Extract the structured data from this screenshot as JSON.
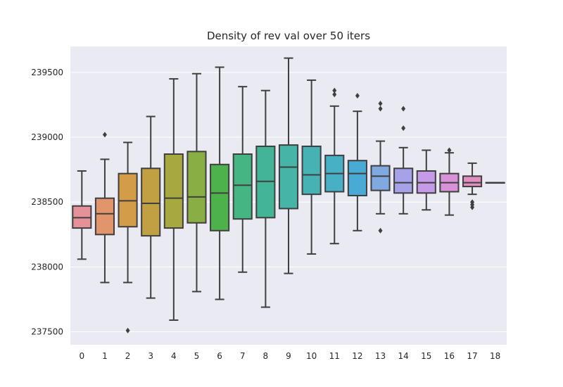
{
  "chart_data": {
    "type": "box",
    "title": "Density of rev val over 50 iters",
    "xlabel": "",
    "ylabel": "",
    "ylim": [
      237400,
      239700
    ],
    "yticks": [
      237500,
      238000,
      238500,
      239000,
      239500
    ],
    "grid": true,
    "categories": [
      "0",
      "1",
      "2",
      "3",
      "4",
      "5",
      "6",
      "7",
      "8",
      "9",
      "10",
      "11",
      "12",
      "13",
      "14",
      "15",
      "16",
      "17",
      "18"
    ],
    "boxes": [
      {
        "min": 238060,
        "q1": 238300,
        "median": 238380,
        "q3": 238470,
        "max": 238740,
        "outliers": [],
        "color": "#e6909a"
      },
      {
        "min": 237880,
        "q1": 238250,
        "median": 238410,
        "q3": 238530,
        "max": 238830,
        "outliers": [
          239020
        ],
        "color": "#e2956a"
      },
      {
        "min": 237880,
        "q1": 238310,
        "median": 238510,
        "q3": 238720,
        "max": 238960,
        "outliers": [
          237510
        ],
        "color": "#d29c48"
      },
      {
        "min": 237760,
        "q1": 238240,
        "median": 238490,
        "q3": 238760,
        "max": 239160,
        "outliers": [],
        "color": "#c0a043"
      },
      {
        "min": 237590,
        "q1": 238300,
        "median": 238530,
        "q3": 238870,
        "max": 239450,
        "outliers": [],
        "color": "#a7a940"
      },
      {
        "min": 237810,
        "q1": 238340,
        "median": 238540,
        "q3": 238890,
        "max": 239490,
        "outliers": [],
        "color": "#89ae43"
      },
      {
        "min": 237750,
        "q1": 238280,
        "median": 238570,
        "q3": 238790,
        "max": 239540,
        "outliers": [],
        "color": "#4eb24c"
      },
      {
        "min": 237960,
        "q1": 238370,
        "median": 238630,
        "q3": 238870,
        "max": 239390,
        "outliers": [],
        "color": "#46b584"
      },
      {
        "min": 237690,
        "q1": 238380,
        "median": 238660,
        "q3": 238930,
        "max": 239360,
        "outliers": [],
        "color": "#44b496"
      },
      {
        "min": 237950,
        "q1": 238450,
        "median": 238770,
        "q3": 238940,
        "max": 239610,
        "outliers": [],
        "color": "#46b4a6"
      },
      {
        "min": 238100,
        "q1": 238560,
        "median": 238710,
        "q3": 238930,
        "max": 239440,
        "outliers": [],
        "color": "#47b2b4"
      },
      {
        "min": 238180,
        "q1": 238580,
        "median": 238720,
        "q3": 238860,
        "max": 239240,
        "outliers": [
          239330,
          239360
        ],
        "color": "#48b0c4"
      },
      {
        "min": 238280,
        "q1": 238550,
        "median": 238720,
        "q3": 238820,
        "max": 239200,
        "outliers": [
          239320
        ],
        "color": "#4aaad6"
      },
      {
        "min": 238410,
        "q1": 238590,
        "median": 238700,
        "q3": 238780,
        "max": 238970,
        "outliers": [
          238280,
          239220,
          239260
        ],
        "color": "#7fa9e0"
      },
      {
        "min": 238410,
        "q1": 238570,
        "median": 238650,
        "q3": 238760,
        "max": 238920,
        "outliers": [
          239070,
          239220
        ],
        "color": "#a6a2ea"
      },
      {
        "min": 238440,
        "q1": 238570,
        "median": 238650,
        "q3": 238740,
        "max": 238900,
        "outliers": [],
        "color": "#c59ae6"
      },
      {
        "min": 238400,
        "q1": 238580,
        "median": 238650,
        "q3": 238720,
        "max": 238880,
        "outliers": [
          238900
        ],
        "color": "#d893d8"
      },
      {
        "min": 238560,
        "q1": 238620,
        "median": 238650,
        "q3": 238700,
        "max": 238800,
        "outliers": [
          238460,
          238480,
          238500
        ],
        "color": "#e28fc0"
      },
      {
        "min": 238650,
        "q1": 238650,
        "median": 238650,
        "q3": 238650,
        "max": 238650,
        "outliers": [],
        "color": "#e68fa8"
      }
    ]
  }
}
